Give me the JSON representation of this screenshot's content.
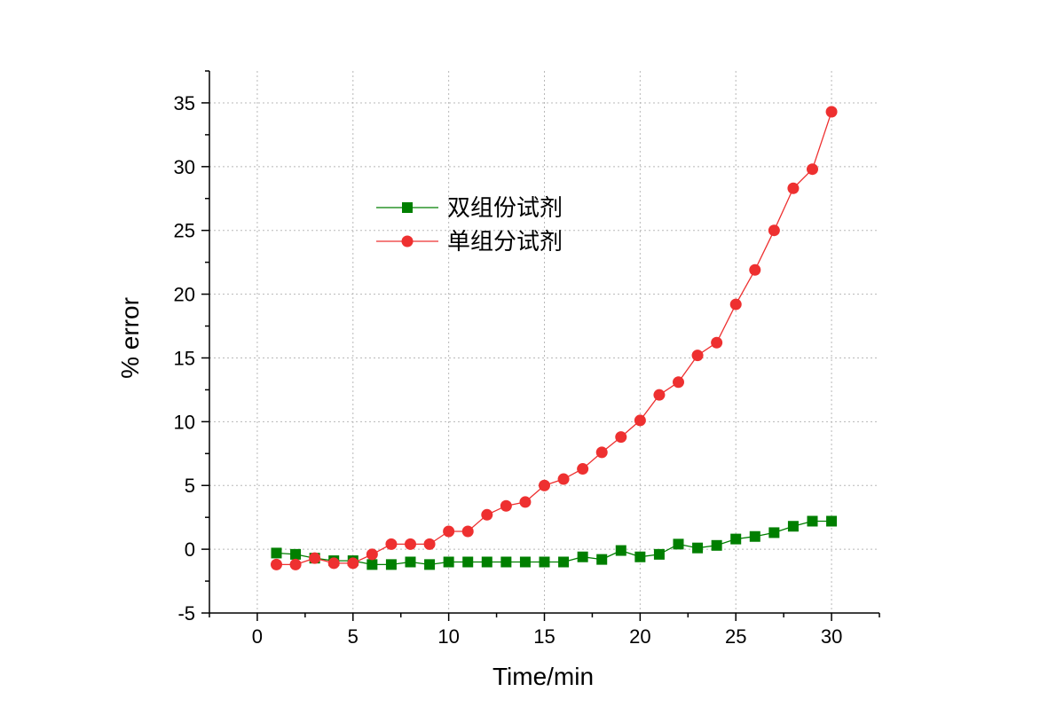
{
  "chart_data": {
    "type": "line",
    "xlabel": "Time/min",
    "ylabel": "% error",
    "xlim": [
      -2.5,
      32.5
    ],
    "ylim": [
      -5,
      37.5
    ],
    "xticks": [
      0,
      5,
      10,
      15,
      20,
      25,
      30
    ],
    "yticks": [
      -5,
      0,
      5,
      10,
      15,
      20,
      25,
      30,
      35
    ],
    "grid": true,
    "legend_position": "upper-left-center",
    "series": [
      {
        "name": "双组份试剂",
        "color": "#007f00",
        "marker": "square",
        "x": [
          1,
          2,
          3,
          4,
          5,
          6,
          7,
          8,
          9,
          10,
          11,
          12,
          13,
          14,
          15,
          16,
          17,
          18,
          19,
          20,
          21,
          22,
          23,
          24,
          25,
          26,
          27,
          28,
          29,
          30
        ],
        "y": [
          -0.3,
          -0.4,
          -0.7,
          -0.9,
          -0.9,
          -1.2,
          -1.2,
          -1.0,
          -1.2,
          -1.0,
          -1.0,
          -1.0,
          -1.0,
          -1.0,
          -1.0,
          -1.0,
          -0.6,
          -0.8,
          -0.1,
          -0.6,
          -0.4,
          0.4,
          0.1,
          0.3,
          0.8,
          1.0,
          1.3,
          1.8,
          2.2,
          2.2
        ]
      },
      {
        "name": "单组分试剂",
        "color": "#ee3030",
        "marker": "circle",
        "x": [
          1,
          2,
          3,
          4,
          5,
          6,
          7,
          8,
          9,
          10,
          11,
          12,
          13,
          14,
          15,
          16,
          17,
          18,
          19,
          20,
          21,
          22,
          23,
          24,
          25,
          26,
          27,
          28,
          29,
          30
        ],
        "y": [
          -1.2,
          -1.2,
          -0.7,
          -1.1,
          -1.1,
          -0.4,
          0.4,
          0.4,
          0.4,
          1.4,
          1.4,
          2.7,
          3.4,
          3.7,
          5.0,
          5.5,
          6.3,
          7.6,
          8.8,
          10.1,
          12.1,
          13.1,
          15.2,
          16.2,
          19.2,
          21.9,
          25.0,
          28.3,
          29.8,
          34.3
        ]
      }
    ]
  }
}
